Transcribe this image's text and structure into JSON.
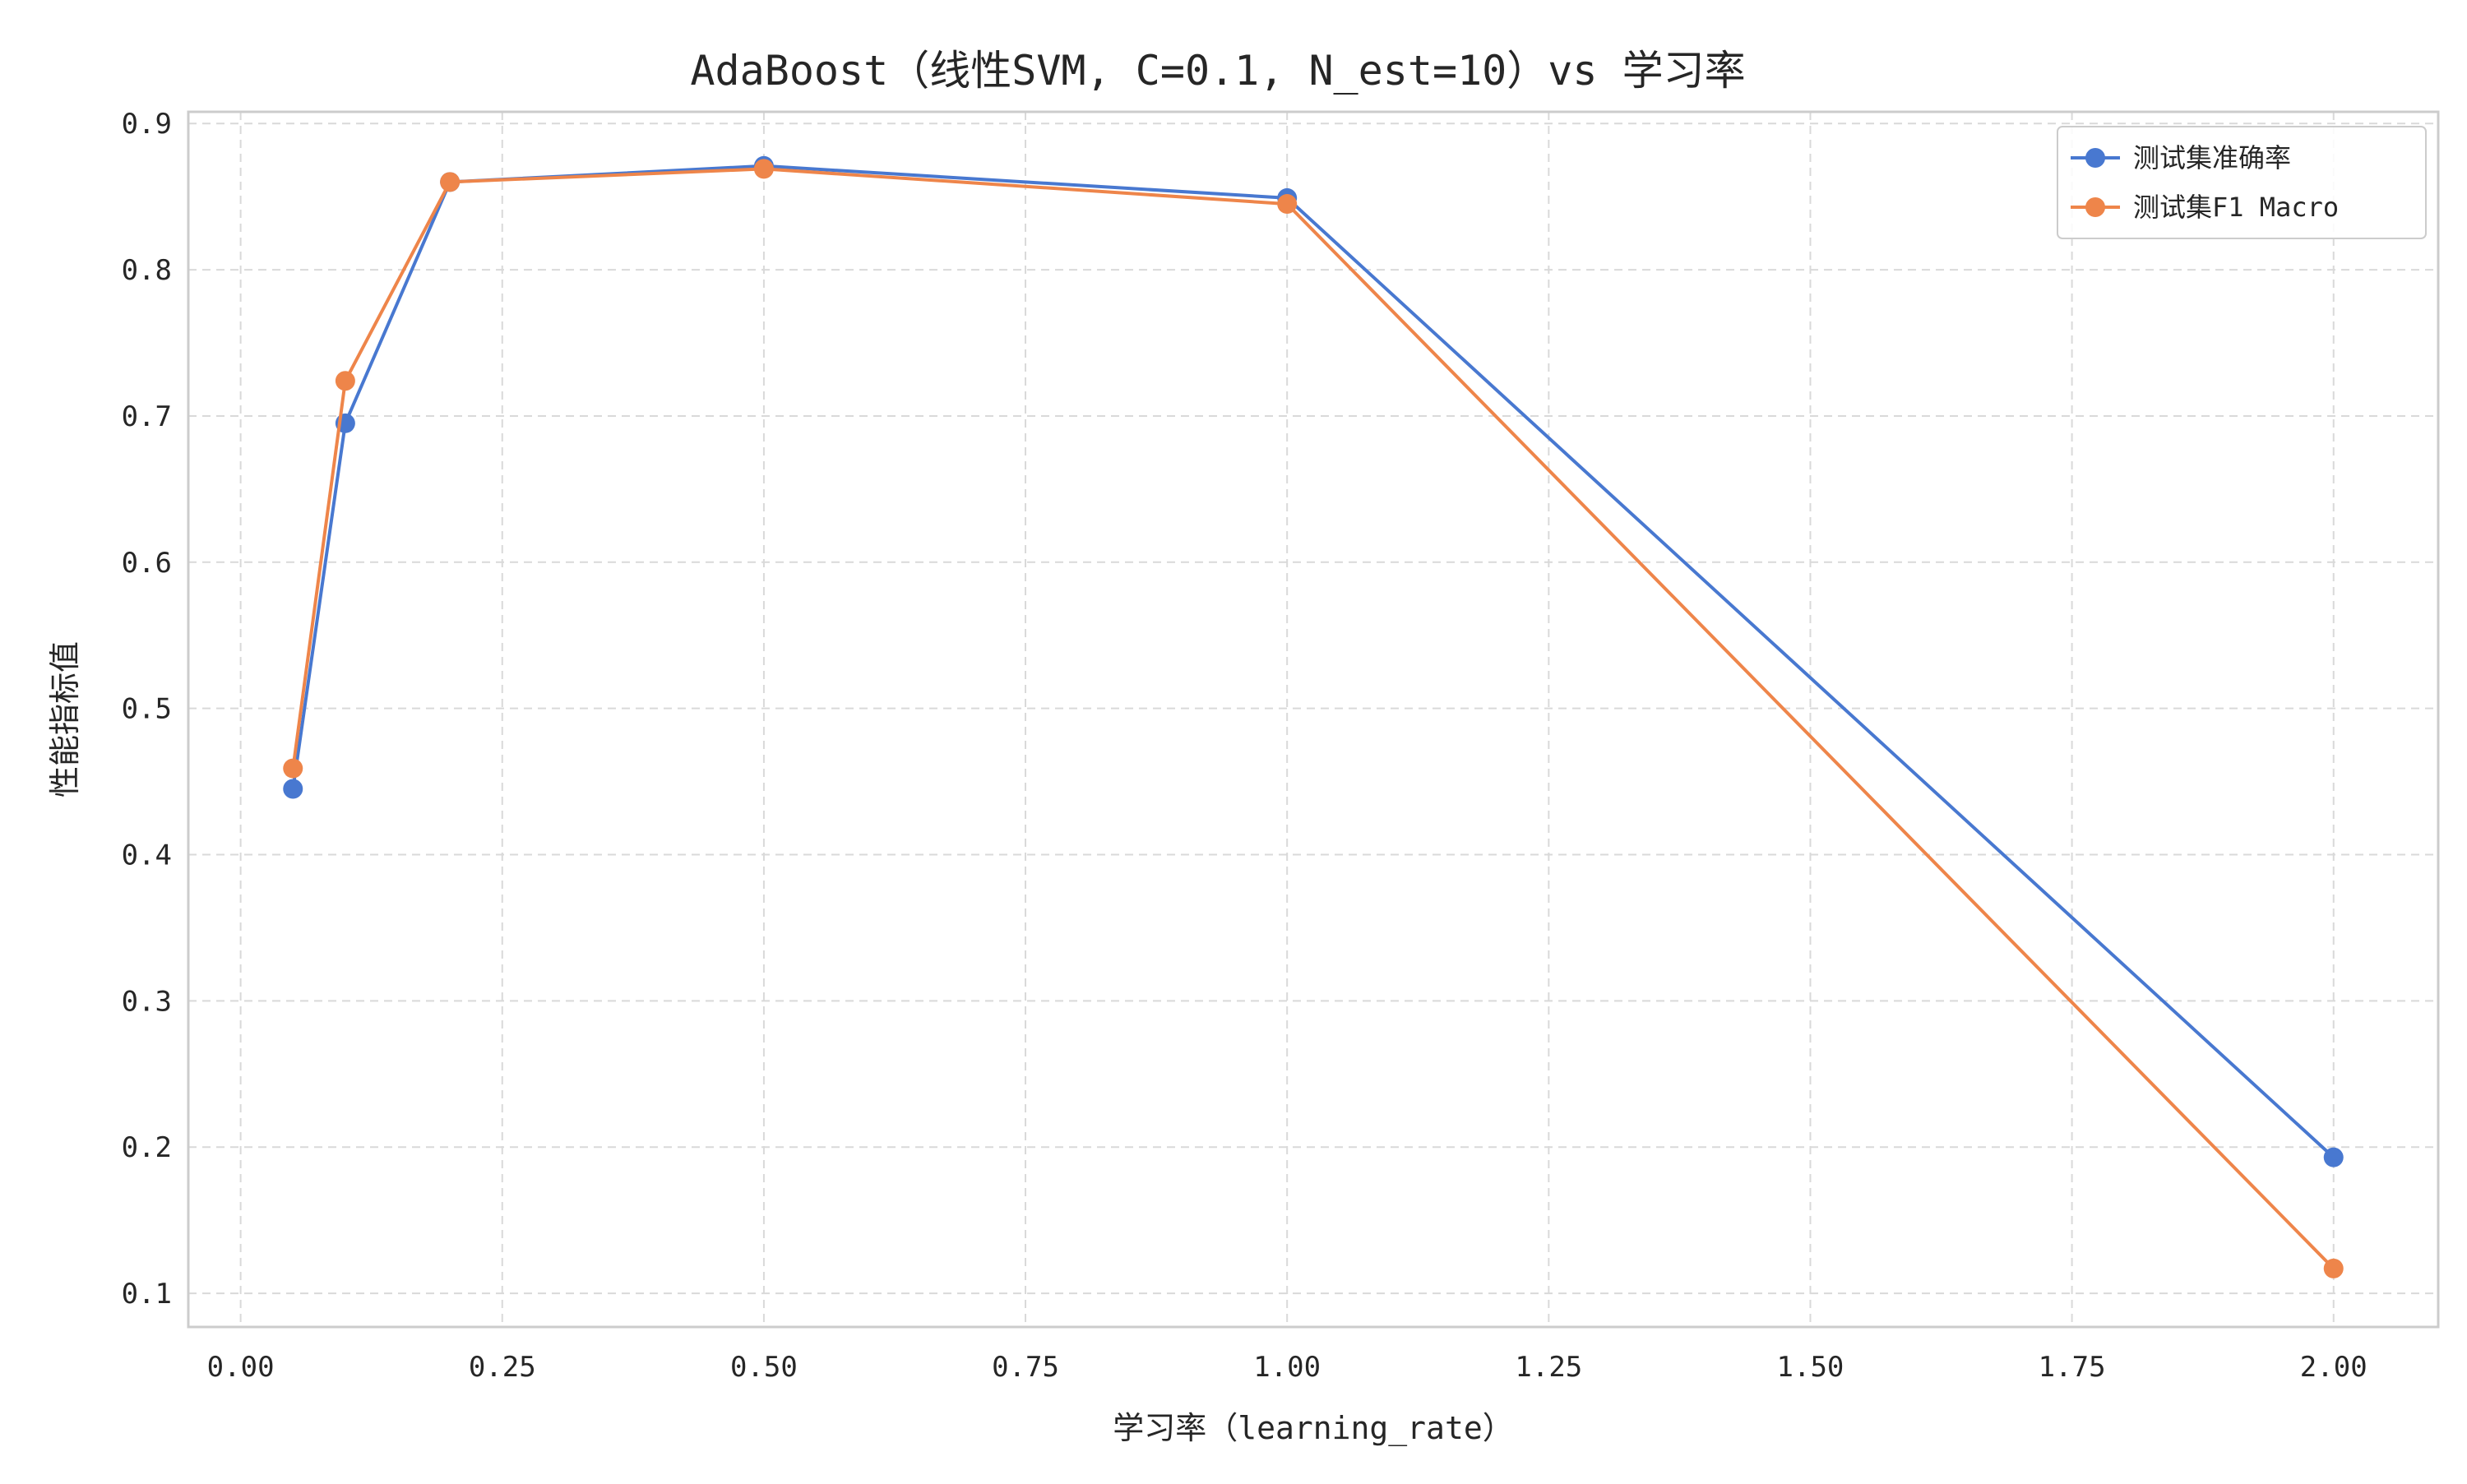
{
  "chart_data": {
    "type": "line",
    "title": "AdaBoost（线性SVM, C=0.1, N_est=10）vs 学习率",
    "xlabel": "学习率（learning_rate）",
    "ylabel": "性能指标值",
    "xlim": [
      -0.05,
      2.1
    ],
    "ylim": [
      0.077,
      0.908
    ],
    "xticks": [
      0.0,
      0.25,
      0.5,
      0.75,
      1.0,
      1.25,
      1.5,
      1.75,
      2.0
    ],
    "xtick_labels": [
      "0.00",
      "0.25",
      "0.50",
      "0.75",
      "1.00",
      "1.25",
      "1.50",
      "1.75",
      "2.00"
    ],
    "yticks": [
      0.1,
      0.2,
      0.3,
      0.4,
      0.5,
      0.6,
      0.7,
      0.8,
      0.9
    ],
    "ytick_labels": [
      "0.1",
      "0.2",
      "0.3",
      "0.4",
      "0.5",
      "0.6",
      "0.7",
      "0.8",
      "0.9"
    ],
    "grid": true,
    "legend_position": "top-right",
    "x": [
      0.05,
      0.1,
      0.2,
      0.5,
      1.0,
      2.0
    ],
    "series": [
      {
        "name": "测试集准确率",
        "color": "#4878d0",
        "values": [
          0.445,
          0.695,
          0.86,
          0.871,
          0.849,
          0.193
        ]
      },
      {
        "name": "测试集F1 Macro",
        "color": "#ee854a",
        "values": [
          0.459,
          0.724,
          0.86,
          0.869,
          0.845,
          0.117
        ]
      }
    ]
  }
}
